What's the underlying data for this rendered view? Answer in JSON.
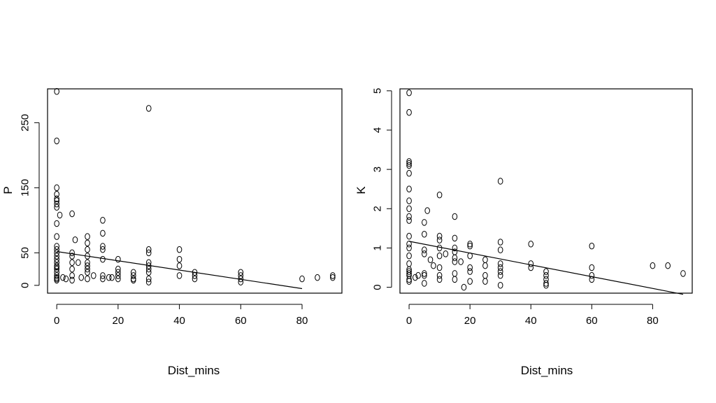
{
  "chart_data": [
    {
      "type": "scatter",
      "xlabel": "Dist_mins",
      "ylabel": "P",
      "xlim": [
        -3,
        93
      ],
      "ylim": [
        -12,
        302
      ],
      "xticks": [
        0,
        20,
        40,
        60,
        80
      ],
      "yticks": [
        0,
        50,
        150,
        250
      ],
      "regression": {
        "x": [
          0,
          80
        ],
        "y": [
          52,
          -5
        ]
      },
      "x": [
        0,
        0,
        0,
        0,
        0,
        0,
        0,
        0,
        0,
        0,
        0,
        0,
        0,
        0,
        0,
        0,
        0,
        0,
        0,
        0,
        0,
        0,
        0,
        0,
        1,
        2,
        3,
        5,
        5,
        5,
        5,
        5,
        5,
        5,
        6,
        7,
        8,
        10,
        10,
        10,
        10,
        10,
        10,
        10,
        10,
        10,
        12,
        15,
        15,
        15,
        15,
        15,
        15,
        15,
        17,
        18,
        20,
        20,
        20,
        20,
        20,
        25,
        25,
        25,
        25,
        30,
        30,
        30,
        30,
        30,
        30,
        30,
        30,
        30,
        40,
        40,
        40,
        40,
        45,
        45,
        45,
        60,
        60,
        60,
        60,
        80,
        85,
        90,
        90
      ],
      "y": [
        298,
        222,
        150,
        140,
        133,
        130,
        125,
        120,
        95,
        75,
        60,
        55,
        50,
        45,
        40,
        35,
        30,
        28,
        25,
        20,
        15,
        12,
        10,
        8,
        108,
        12,
        10,
        110,
        50,
        45,
        35,
        25,
        15,
        8,
        70,
        35,
        12,
        75,
        65,
        55,
        45,
        35,
        30,
        25,
        20,
        10,
        15,
        100,
        80,
        60,
        55,
        40,
        15,
        10,
        12,
        12,
        40,
        25,
        20,
        15,
        10,
        20,
        15,
        10,
        8,
        272,
        55,
        50,
        35,
        30,
        25,
        20,
        10,
        5,
        55,
        40,
        30,
        15,
        20,
        15,
        10,
        20,
        15,
        10,
        5,
        10,
        12,
        15,
        12
      ]
    },
    {
      "type": "scatter",
      "xlabel": "Dist_mins",
      "ylabel": "K",
      "xlim": [
        -3,
        93
      ],
      "ylim": [
        -0.15,
        5.05
      ],
      "xticks": [
        0,
        20,
        40,
        60,
        80
      ],
      "yticks": [
        0,
        1,
        2,
        3,
        4,
        5
      ],
      "regression": {
        "x": [
          0,
          90
        ],
        "y": [
          1.17,
          -0.18
        ]
      },
      "x": [
        0,
        0,
        0,
        0,
        0,
        0,
        0,
        0,
        0,
        0,
        0,
        0,
        0,
        0,
        0,
        0,
        0,
        0,
        0,
        0,
        0,
        0,
        2,
        3,
        5,
        5,
        5,
        5,
        5,
        5,
        5,
        6,
        7,
        8,
        10,
        10,
        10,
        10,
        10,
        10,
        10,
        10,
        12,
        15,
        15,
        15,
        15,
        15,
        15,
        15,
        15,
        17,
        18,
        20,
        20,
        20,
        20,
        20,
        20,
        25,
        25,
        25,
        25,
        30,
        30,
        30,
        30,
        30,
        30,
        30,
        30,
        40,
        40,
        40,
        45,
        45,
        45,
        45,
        45,
        60,
        60,
        60,
        60,
        80,
        85,
        90
      ],
      "y": [
        4.95,
        4.45,
        3.2,
        3.15,
        3.1,
        2.9,
        2.5,
        2.2,
        2.0,
        1.8,
        1.7,
        1.3,
        1.1,
        1.0,
        0.8,
        0.6,
        0.45,
        0.4,
        0.35,
        0.3,
        0.2,
        0.15,
        0.25,
        0.3,
        1.65,
        1.35,
        0.95,
        0.85,
        0.35,
        0.3,
        0.1,
        1.95,
        0.7,
        0.55,
        2.35,
        1.3,
        1.2,
        1.0,
        0.8,
        0.5,
        0.3,
        0.2,
        0.85,
        1.8,
        1.25,
        1.0,
        0.9,
        0.75,
        0.65,
        0.35,
        0.2,
        0.65,
        0.0,
        1.1,
        1.05,
        0.8,
        0.5,
        0.4,
        0.15,
        0.7,
        0.55,
        0.3,
        0.15,
        2.7,
        1.15,
        0.95,
        0.6,
        0.5,
        0.4,
        0.3,
        0.05,
        1.1,
        0.6,
        0.5,
        0.4,
        0.3,
        0.2,
        0.1,
        0.05,
        1.05,
        0.5,
        0.3,
        0.2,
        0.55,
        0.55,
        0.35
      ]
    }
  ]
}
